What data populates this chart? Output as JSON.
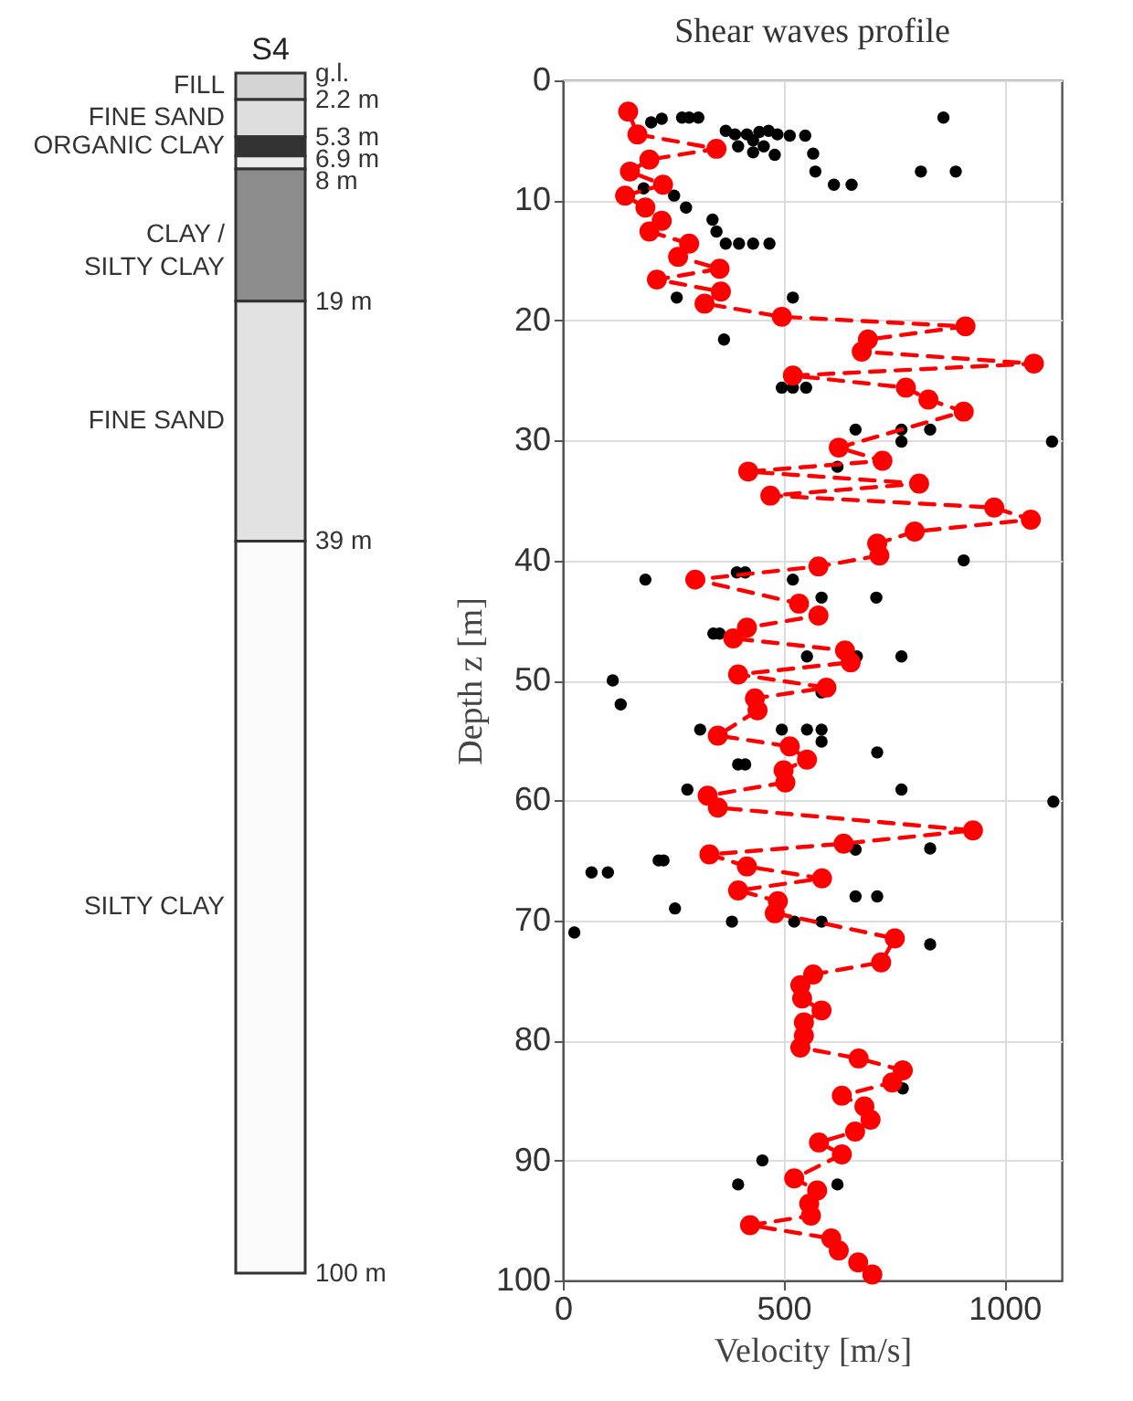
{
  "chart_data": [
    {
      "type": "bar",
      "stacked": true,
      "categories": [
        "S4"
      ],
      "ylim": [
        100,
        0
      ],
      "yticks": [
        {
          "value": 0,
          "label": "g.l."
        },
        {
          "value": 2.2,
          "label": "2.2 m"
        },
        {
          "value": 5.3,
          "label": "5.3 m"
        },
        {
          "value": 6.9,
          "label": "6.9 m"
        },
        {
          "value": 8,
          "label": "8 m"
        },
        {
          "value": 19,
          "label": "19 m"
        },
        {
          "value": 39,
          "label": "39 m"
        },
        {
          "value": 100,
          "label": "100 m"
        }
      ],
      "series": [
        {
          "name": "FILL",
          "color": "#d4d4d4",
          "values": [
            2.2
          ]
        },
        {
          "name": "FINE SAND",
          "color": "#dedede",
          "values": [
            3.1
          ]
        },
        {
          "name": "ORGANIC CLAY",
          "color": "#333333",
          "values": [
            1.6
          ]
        },
        {
          "color": "#ececec",
          "values": [
            1.1
          ]
        },
        {
          "name": "CLAY /\nSILTY CLAY",
          "color": "#8c8c8c",
          "values": [
            11
          ]
        },
        {
          "name": "FINE SAND",
          "color": "#e2e2e2",
          "values": [
            20
          ]
        },
        {
          "name": "SILTY CLAY",
          "color": "#fbfbfb",
          "values": [
            61
          ]
        }
      ]
    },
    {
      "type": "scatter",
      "title": "Shear waves profile",
      "xlabel": "Velocity [m/s]",
      "ylabel": "Depth z [m]",
      "xlim": [
        0,
        1130
      ],
      "xticks": [
        0,
        500,
        1000
      ],
      "ylim": [
        100,
        0
      ],
      "yticks": [
        0,
        10,
        20,
        30,
        40,
        50,
        60,
        70,
        80,
        90,
        100
      ],
      "grid": true,
      "marker": "circle",
      "series": [
        {
          "type": "scatter",
          "color": "#000000",
          "x": [
            224,
            200,
            270,
            286,
            307,
            862,
            369,
            390,
            417,
            445,
            466,
            486,
            514,
            549,
            397,
            431,
            455,
            480,
            431,
            567,
            572,
            811,
            890,
            614,
            654,
            183,
            252,
            279,
            339,
            348,
            369,
            399,
            431,
            468,
            258,
            521,
            365,
            496,
            521,
            551,
            663,
            767,
            832,
            767,
            1108,
            622,
            908,
            187,
            394,
            413,
            521,
            586,
            710,
            341,
            355,
            553,
            666,
            767,
            113,
            131,
            586,
            311,
            496,
            553,
            586,
            586,
            712,
            397,
            413,
            282,
            767,
            1111,
            663,
            832,
            217,
            228,
            65,
            102,
            663,
            712,
            254,
            383,
            524,
            586,
            26,
            832,
            770,
            452,
            397,
            622
          ],
          "values": [
            3.2,
            3.5,
            3.1,
            3.1,
            3.1,
            3.1,
            4.2,
            4.5,
            4.5,
            4.3,
            4.2,
            4.5,
            4.6,
            4.6,
            5.5,
            6.0,
            5.5,
            6.2,
            5.0,
            6.1,
            7.6,
            7.6,
            7.6,
            8.7,
            8.7,
            9.0,
            9.6,
            10.6,
            11.6,
            12.6,
            13.6,
            13.6,
            13.6,
            13.6,
            18.1,
            18.1,
            21.6,
            25.6,
            25.6,
            25.6,
            29.1,
            29.1,
            29.1,
            30.1,
            30.1,
            32.2,
            40.0,
            41.6,
            41.0,
            41.0,
            41.6,
            43.1,
            43.1,
            46.1,
            46.1,
            48.0,
            48.0,
            48.0,
            50.0,
            52.0,
            51.0,
            54.1,
            54.1,
            54.1,
            54.1,
            55.1,
            56.0,
            57.0,
            57.0,
            59.1,
            59.1,
            60.1,
            64.1,
            64.0,
            65.0,
            65.0,
            66.0,
            66.0,
            68.0,
            68.0,
            69.0,
            70.1,
            70.1,
            70.1,
            71.0,
            72.0,
            84.0,
            90.0,
            92.0,
            92.0
          ]
        },
        {
          "type": "line",
          "color": "#ff0000",
          "line_style": "dashed",
          "x": [
            148,
            169,
            348,
            196,
            152,
            227,
            141,
            187,
            224,
            196,
            286,
            261,
            355,
            213,
            358,
            321,
            496,
            912,
            691,
            677,
            1067,
            521,
            777,
            828,
            908,
            625,
            724,
            420,
            807,
            470,
            977,
            1060,
            797,
            712,
            717,
            579,
            300,
            535,
            579,
            417,
            386,
            639,
            652,
            397,
            597,
            435,
            441,
            351,
            514,
            553,
            500,
            504,
            328,
            351,
            929,
            636,
            332,
            417,
            587,
            397,
            487,
            480,
            752,
            721,
            567,
            538,
            542,
            586,
            546,
            546,
            538,
            670,
            770,
            746,
            632,
            683,
            697,
            662,
            580,
            632,
            524,
            576,
            558,
            562,
            424,
            608,
            625,
            669,
            701
          ],
          "values": [
            2.6,
            4.5,
            5.7,
            6.6,
            7.6,
            8.7,
            9.6,
            10.6,
            11.7,
            12.6,
            13.6,
            14.7,
            15.7,
            16.6,
            17.6,
            18.6,
            19.7,
            20.5,
            21.6,
            22.6,
            23.6,
            24.6,
            25.6,
            26.6,
            27.6,
            30.6,
            31.7,
            32.6,
            33.6,
            34.6,
            35.6,
            36.6,
            37.6,
            38.6,
            39.6,
            40.5,
            41.6,
            43.6,
            44.6,
            45.6,
            46.5,
            47.5,
            48.5,
            49.5,
            50.6,
            51.5,
            52.5,
            54.6,
            55.5,
            56.6,
            57.5,
            58.5,
            59.6,
            60.6,
            62.5,
            63.6,
            64.5,
            65.5,
            66.5,
            67.5,
            68.4,
            69.4,
            71.5,
            73.5,
            74.5,
            75.4,
            76.5,
            77.5,
            78.5,
            79.6,
            80.6,
            81.5,
            82.5,
            83.5,
            84.6,
            85.5,
            86.6,
            87.6,
            88.5,
            89.5,
            91.5,
            92.5,
            93.6,
            94.6,
            95.4,
            96.5,
            97.5,
            98.5,
            99.5
          ]
        }
      ]
    }
  ]
}
